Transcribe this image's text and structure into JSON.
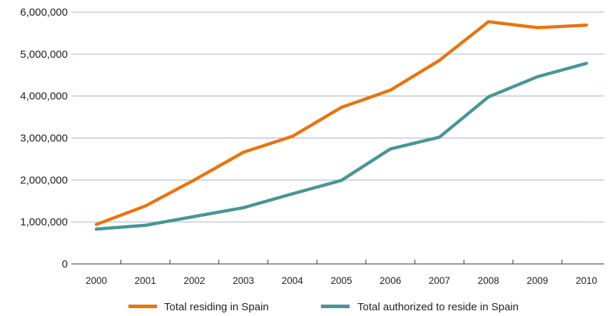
{
  "chart_data": {
    "type": "line",
    "title": "",
    "xlabel": "",
    "ylabel": "",
    "x": [
      "2000",
      "2001",
      "2002",
      "2003",
      "2004",
      "2005",
      "2006",
      "2007",
      "2008",
      "2009",
      "2010"
    ],
    "ylim": [
      0,
      6000000
    ],
    "yticks": [
      0,
      1000000,
      2000000,
      3000000,
      4000000,
      5000000,
      6000000
    ],
    "ytick_labels": [
      "0",
      "1,000,000",
      "2,000,000",
      "3,000,000",
      "4,000,000",
      "5,000,000",
      "6,000,000"
    ],
    "grid": "horizontal",
    "legend_position": "bottom",
    "series": [
      {
        "name": "Total residing in Spain",
        "color": "#E8750F",
        "values": [
          940000,
          1380000,
          2000000,
          2660000,
          3040000,
          3730000,
          4140000,
          4850000,
          5770000,
          5630000,
          5690000
        ]
      },
      {
        "name": "Total authorized to reside in Spain",
        "color": "#4A9596",
        "values": [
          830000,
          920000,
          1130000,
          1340000,
          1670000,
          1990000,
          2740000,
          3020000,
          3980000,
          4460000,
          4780000
        ]
      }
    ]
  }
}
